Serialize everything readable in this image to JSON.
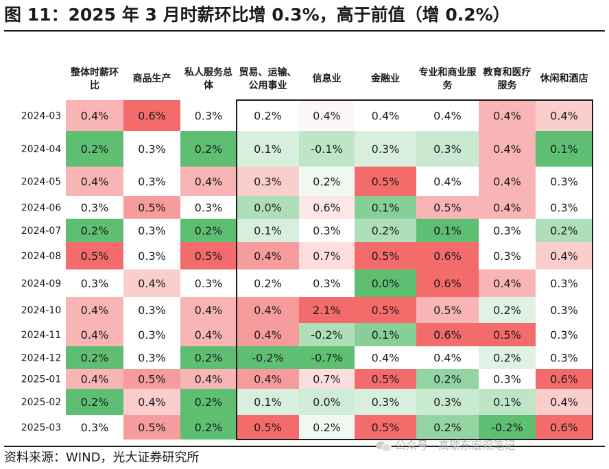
{
  "title": "图 11：2025 年 3 月时薪环比增 0.3%，高于前值（增 0.2%）",
  "source": "资料来源：WIND，光大证券研究所",
  "watermark": "公众号 · 高瑞东宏观笔记",
  "colors": {
    "high": "#f36b6b",
    "neutral": "#ffffff",
    "low": "#5ebf73",
    "border": "#1a1a1a"
  },
  "chart_data": {
    "type": "heatmap",
    "columns": [
      "整体时薪环比",
      "商品生产",
      "私人服务总体",
      "贸易、运输、公用事业",
      "信息业",
      "金融业",
      "专业和商业服务",
      "教育和医疗服务",
      "休闲和酒店"
    ],
    "rows": [
      "2024-03",
      "2024-04",
      "2024-05",
      "2024-06",
      "2024-07",
      "2024-08",
      "2024-09",
      "2024-10",
      "2024-11",
      "2024-12",
      "2025-01",
      "2025-02",
      "2025-03"
    ],
    "values": [
      [
        0.4,
        0.6,
        0.3,
        0.2,
        0.4,
        0.4,
        0.4,
        0.4,
        0.4
      ],
      [
        0.2,
        0.3,
        0.2,
        0.1,
        -0.1,
        0.3,
        0.3,
        0.4,
        0.1
      ],
      [
        0.4,
        0.3,
        0.4,
        0.3,
        0.2,
        0.5,
        0.4,
        0.4,
        0.3
      ],
      [
        0.3,
        0.5,
        0.3,
        0.0,
        0.6,
        0.1,
        0.5,
        0.4,
        0.3
      ],
      [
        0.2,
        0.3,
        0.2,
        0.1,
        0.3,
        0.2,
        0.1,
        0.3,
        0.2
      ],
      [
        0.5,
        0.3,
        0.5,
        0.4,
        0.7,
        0.5,
        0.6,
        0.3,
        0.4
      ],
      [
        0.3,
        0.4,
        0.3,
        0.2,
        0.3,
        0.0,
        0.6,
        0.4,
        0.3
      ],
      [
        0.4,
        0.3,
        0.4,
        0.4,
        2.1,
        0.5,
        0.5,
        0.2,
        0.3
      ],
      [
        0.4,
        0.3,
        0.4,
        0.4,
        -0.2,
        0.1,
        0.6,
        0.5,
        0.3
      ],
      [
        0.2,
        0.3,
        0.2,
        -0.2,
        -0.7,
        0.4,
        0.4,
        0.2,
        0.3
      ],
      [
        0.4,
        0.5,
        0.4,
        0.4,
        0.7,
        0.5,
        0.2,
        0.3,
        0.6
      ],
      [
        0.2,
        0.4,
        0.2,
        0.1,
        0.0,
        0.3,
        0.3,
        0.1,
        0.4
      ],
      [
        0.3,
        0.5,
        0.2,
        0.5,
        0.2,
        0.5,
        0.2,
        -0.2,
        0.6
      ]
    ],
    "value_format": "percent_1dp",
    "boxed_columns": [
      "贸易、运输、公用事业",
      "信息业",
      "金融业",
      "专业和商业服务",
      "教育和医疗服务",
      "休闲和酒店"
    ]
  }
}
